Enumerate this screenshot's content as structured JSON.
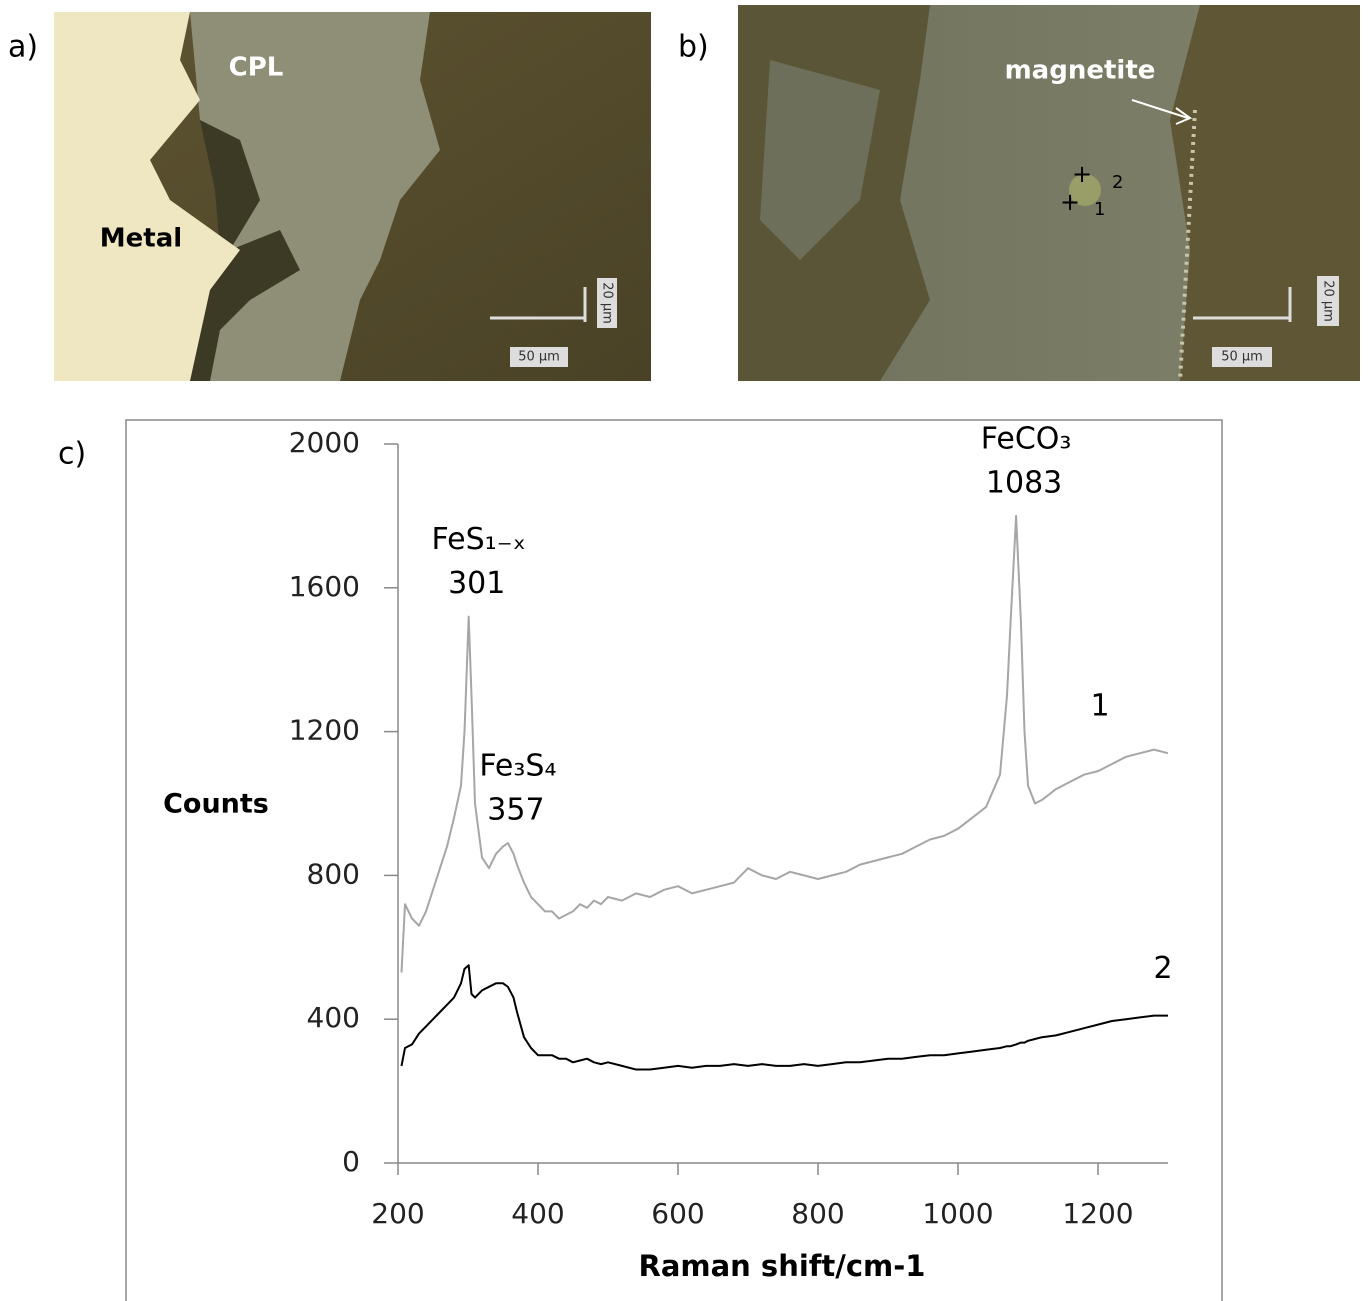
{
  "panels": {
    "a": {
      "label": "a)",
      "annotations": [
        "CPL",
        "Metal"
      ],
      "scale_bar": "50 µm",
      "scale_bar_vertical": "20 µm"
    },
    "b": {
      "label": "b)",
      "annotations": [
        "magnetite"
      ],
      "points": [
        "2",
        "1"
      ],
      "scale_bar": "50 µm",
      "scale_bar_vertical": "20 µm"
    },
    "c": {
      "label": "c)"
    }
  },
  "chart_data": {
    "type": "line",
    "x_label": "Raman shift/cm-1",
    "y_label": "Counts",
    "xlim": [
      200,
      1300
    ],
    "ylim": [
      0,
      2000
    ],
    "xticks": [
      200,
      400,
      600,
      800,
      1000,
      1200
    ],
    "yticks": [
      0,
      400,
      800,
      1200,
      1600,
      2000
    ],
    "x": [
      205,
      210,
      220,
      230,
      240,
      250,
      260,
      270,
      280,
      290,
      295,
      301,
      305,
      310,
      320,
      330,
      340,
      350,
      357,
      365,
      370,
      380,
      390,
      400,
      410,
      420,
      430,
      440,
      450,
      460,
      470,
      480,
      490,
      500,
      520,
      540,
      560,
      580,
      600,
      620,
      640,
      660,
      680,
      700,
      720,
      740,
      760,
      780,
      800,
      820,
      840,
      860,
      880,
      900,
      920,
      940,
      960,
      980,
      1000,
      1020,
      1040,
      1060,
      1070,
      1075,
      1083,
      1090,
      1095,
      1100,
      1110,
      1120,
      1140,
      1160,
      1180,
      1200,
      1220,
      1240,
      1260,
      1280,
      1300
    ],
    "series": [
      {
        "name": "1",
        "color": "#a6a6a6",
        "values": [
          530,
          720,
          680,
          660,
          700,
          760,
          820,
          880,
          960,
          1050,
          1200,
          1520,
          1300,
          1000,
          850,
          820,
          860,
          880,
          890,
          860,
          830,
          780,
          740,
          720,
          700,
          700,
          680,
          690,
          700,
          720,
          710,
          730,
          720,
          740,
          730,
          750,
          740,
          760,
          770,
          750,
          760,
          770,
          780,
          820,
          800,
          790,
          810,
          800,
          790,
          800,
          810,
          830,
          840,
          850,
          860,
          880,
          900,
          910,
          930,
          960,
          990,
          1080,
          1300,
          1500,
          1800,
          1500,
          1200,
          1050,
          1000,
          1010,
          1040,
          1060,
          1080,
          1090,
          1110,
          1130,
          1140,
          1150,
          1140
        ]
      },
      {
        "name": "2",
        "color": "#000000",
        "values": [
          270,
          320,
          330,
          360,
          380,
          400,
          420,
          440,
          460,
          500,
          540,
          550,
          470,
          460,
          480,
          490,
          500,
          500,
          490,
          460,
          420,
          350,
          320,
          300,
          300,
          300,
          290,
          290,
          280,
          285,
          290,
          280,
          275,
          280,
          270,
          260,
          260,
          265,
          270,
          265,
          270,
          270,
          275,
          270,
          275,
          270,
          270,
          275,
          270,
          275,
          280,
          280,
          285,
          290,
          290,
          295,
          300,
          300,
          305,
          310,
          315,
          320,
          325,
          325,
          330,
          335,
          335,
          340,
          345,
          350,
          355,
          365,
          375,
          385,
          395,
          400,
          405,
          410,
          410
        ]
      }
    ],
    "annotations": [
      {
        "label": "FeS₁₋ₓ",
        "x": 301
      },
      {
        "label": "Fe₃S₄",
        "x": 357
      },
      {
        "label": "FeCO₃",
        "x": 1083
      }
    ]
  }
}
